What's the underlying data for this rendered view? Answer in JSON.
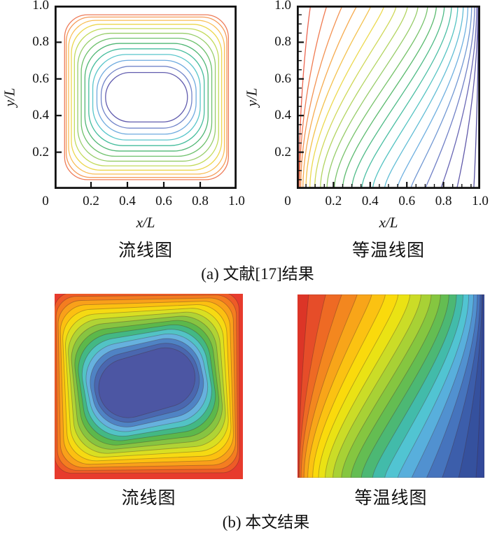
{
  "figure": {
    "panel_a": {
      "caption": "(a) 文献[17]结果",
      "plots": [
        {
          "title": "流线图",
          "xlabel": "x/L",
          "ylabel": "y/L"
        },
        {
          "title": "等温线图",
          "xlabel": "x/L",
          "ylabel": "y/L"
        }
      ]
    },
    "panel_b": {
      "caption": "(b) 本文结果",
      "plots": [
        {
          "title": "流线图"
        },
        {
          "title": "等温线图"
        }
      ]
    }
  },
  "chart_data": [
    {
      "id": "a_streamline",
      "type": "contour",
      "shape": "rings",
      "filled": false,
      "axes": true,
      "title": "流线图",
      "xlabel": "x/L",
      "ylabel": "y/L",
      "xlim": [
        0,
        1.0
      ],
      "ylim": [
        0,
        1.0
      ],
      "x_tick_values": [
        0,
        0.2,
        0.4,
        0.6,
        0.8,
        1.0
      ],
      "x_tick_labels": [
        "0",
        "0.2",
        "0.4",
        "0.6",
        "0.8",
        "1.0"
      ],
      "y_tick_values": [
        0.2,
        0.4,
        0.6,
        0.8,
        1.0
      ],
      "y_tick_labels": [
        "0.2",
        "0.4",
        "0.6",
        "0.8",
        "1.0"
      ],
      "minor_tick_step": null,
      "grid": false,
      "levels": 13,
      "stroke_width": 1.3,
      "geometry": {
        "center": [
          0.505,
          0.5
        ],
        "outer_half": [
          0.45,
          0.45
        ],
        "inner_half": [
          0.225,
          0.135
        ],
        "shrink_exponent": 1.3,
        "roundness": [
          0.28,
          1.0
        ]
      },
      "line_colors": [
        "#ee7b58",
        "#f59a57",
        "#f9bd52",
        "#ecd74f",
        "#c3db5b",
        "#96cd69",
        "#6ec16d",
        "#4fb674",
        "#46bd9d",
        "#59c6cb",
        "#6fabdf",
        "#7285c9",
        "#615cae"
      ],
      "description": "Closed nested streamline contours of cavity recirculation; warm colors near walls, indigo oval core slightly right of center."
    },
    {
      "id": "a_isotherm",
      "type": "contour",
      "shape": "scurves",
      "filled": false,
      "axes": true,
      "title": "等温线图",
      "xlabel": "x/L",
      "ylabel": "y/L",
      "xlim": [
        0,
        1.0
      ],
      "ylim": [
        0,
        1.0
      ],
      "x_tick_values": [
        0,
        0.2,
        0.4,
        0.6,
        0.8,
        1.0
      ],
      "x_tick_labels": [
        "0",
        "0.2",
        "0.4",
        "0.6",
        "0.8",
        "1.0"
      ],
      "y_tick_values": [
        0.2,
        0.4,
        0.6,
        0.8,
        1.0
      ],
      "y_tick_labels": [
        "0.2",
        "0.4",
        "0.6",
        "0.8",
        "1.0"
      ],
      "minor_tick_step": 0.05,
      "grid": false,
      "curves": 21,
      "stroke_width": 1.3,
      "geometry": {
        "bottom_x": [
          0.012,
          0.965
        ],
        "top_x": [
          0.075,
          0.99
        ],
        "cluster_exponent": 2.0,
        "bend_center": [
          0.16,
          0.82
        ],
        "bend_softness": 0.26
      },
      "color_stops": [
        "#ec6550",
        "#f28a52",
        "#f7b350",
        "#ecd94e",
        "#bcd75e",
        "#8cc96a",
        "#5aba6e",
        "#47bc98",
        "#57c5cd",
        "#6fb0e0",
        "#7288cb",
        "#675fb0",
        "#5852a0"
      ],
      "description": "S-shaped isotherms from hot left wall (red, clustered) to cold right wall (indigo); thermal stratification in cavity core."
    },
    {
      "id": "b_streamline",
      "type": "filled_contour",
      "shape": "rings",
      "filled": true,
      "axes": false,
      "title": "流线图",
      "bands": 16,
      "contour_line_color": "rgba(70,40,40,0.35)",
      "geometry": {
        "center": [
          0.49,
          0.48
        ],
        "inner_half": [
          0.26,
          0.16
        ],
        "shrink_exponent": 1.2,
        "roundness": [
          0.16,
          1.0
        ],
        "max_tilt_deg": -16
      },
      "fill_colors": [
        "#e73b2d",
        "#ee5b27",
        "#f47d20",
        "#f9a01a",
        "#fcc011",
        "#f6da12",
        "#d9df22",
        "#b0d335",
        "#87c441",
        "#5cb84b",
        "#43b884",
        "#52c3c5",
        "#66b1de",
        "#4f83c4",
        "#4a67af",
        "#4c56a3"
      ],
      "description": "Filled streamline contours: red boundary layer along the square walls grading through rainbow to a dark slate-blue tilted elliptical vortex core."
    },
    {
      "id": "b_isotherm",
      "type": "filled_contour",
      "shape": "scurves",
      "filled": true,
      "axes": false,
      "title": "等温线图",
      "curves": 20,
      "contour_line_color": "rgba(70,40,40,0.35)",
      "geometry": {
        "bottom_x": [
          0.006,
          0.955
        ],
        "top_x": [
          0.06,
          0.99
        ],
        "cluster_exponent": 1.9,
        "bend_center": [
          0.24,
          0.8
        ],
        "bend_softness": 0.3
      },
      "color_stops": [
        "#dc3527",
        "#e85129",
        "#f07422",
        "#f6971c",
        "#fbba14",
        "#fcd90b",
        "#e9e214",
        "#c3da2c",
        "#99cc3a",
        "#70c046",
        "#4fb767",
        "#41baa8",
        "#53c5d7",
        "#5aa8de",
        "#4b82c7",
        "#3f63b0",
        "#36529f",
        "#32499a"
      ],
      "description": "Filled isotherm bands: hot red region at upper-left, rainbow S-shaped bands sweeping diagonally to cold dark-blue region at lower-right."
    }
  ]
}
